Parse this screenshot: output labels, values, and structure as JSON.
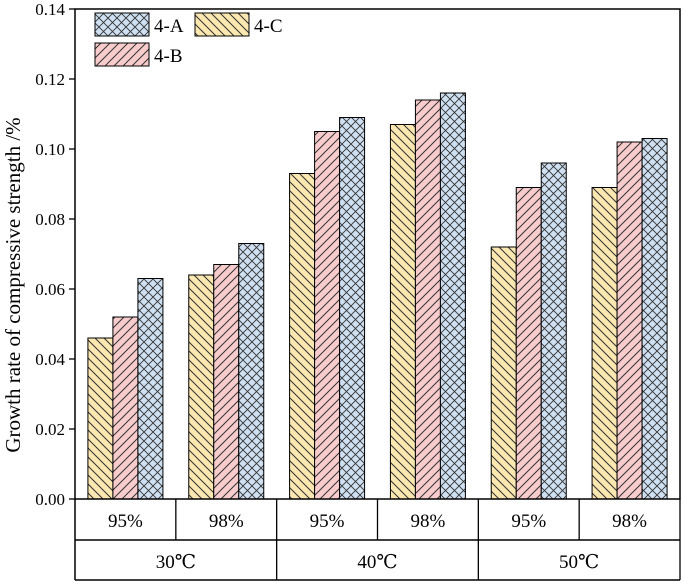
{
  "chart_data": {
    "type": "bar",
    "title": "",
    "xlabel": "",
    "ylabel": "Growth rate of compressive strength /%",
    "ylim": [
      0,
      0.14
    ],
    "yticks": [
      "0.00",
      "0.02",
      "0.04",
      "0.06",
      "0.08",
      "0.10",
      "0.12",
      "0.14"
    ],
    "categories": [
      "95%",
      "98%",
      "95%",
      "98%",
      "95%",
      "98%"
    ],
    "groups": [
      {
        "label": "30℃",
        "span": 2
      },
      {
        "label": "40℃",
        "span": 2
      },
      {
        "label": "50℃",
        "span": 2
      }
    ],
    "series": [
      {
        "name": "4-C",
        "color": "#fbe7b0",
        "pattern": "back-diagonal",
        "values": [
          0.046,
          0.064,
          0.093,
          0.107,
          0.072,
          0.089
        ]
      },
      {
        "name": "4-B",
        "color": "#f8cccc",
        "pattern": "forward-diagonal",
        "values": [
          0.052,
          0.067,
          0.105,
          0.114,
          0.089,
          0.102
        ]
      },
      {
        "name": "4-A",
        "color": "#cfe0f2",
        "pattern": "crosshatch",
        "values": [
          0.063,
          0.073,
          0.109,
          0.116,
          0.096,
          0.103
        ]
      }
    ],
    "legend": {
      "position": "top-left",
      "order": [
        "4-A",
        "4-C",
        "4-B"
      ]
    }
  }
}
